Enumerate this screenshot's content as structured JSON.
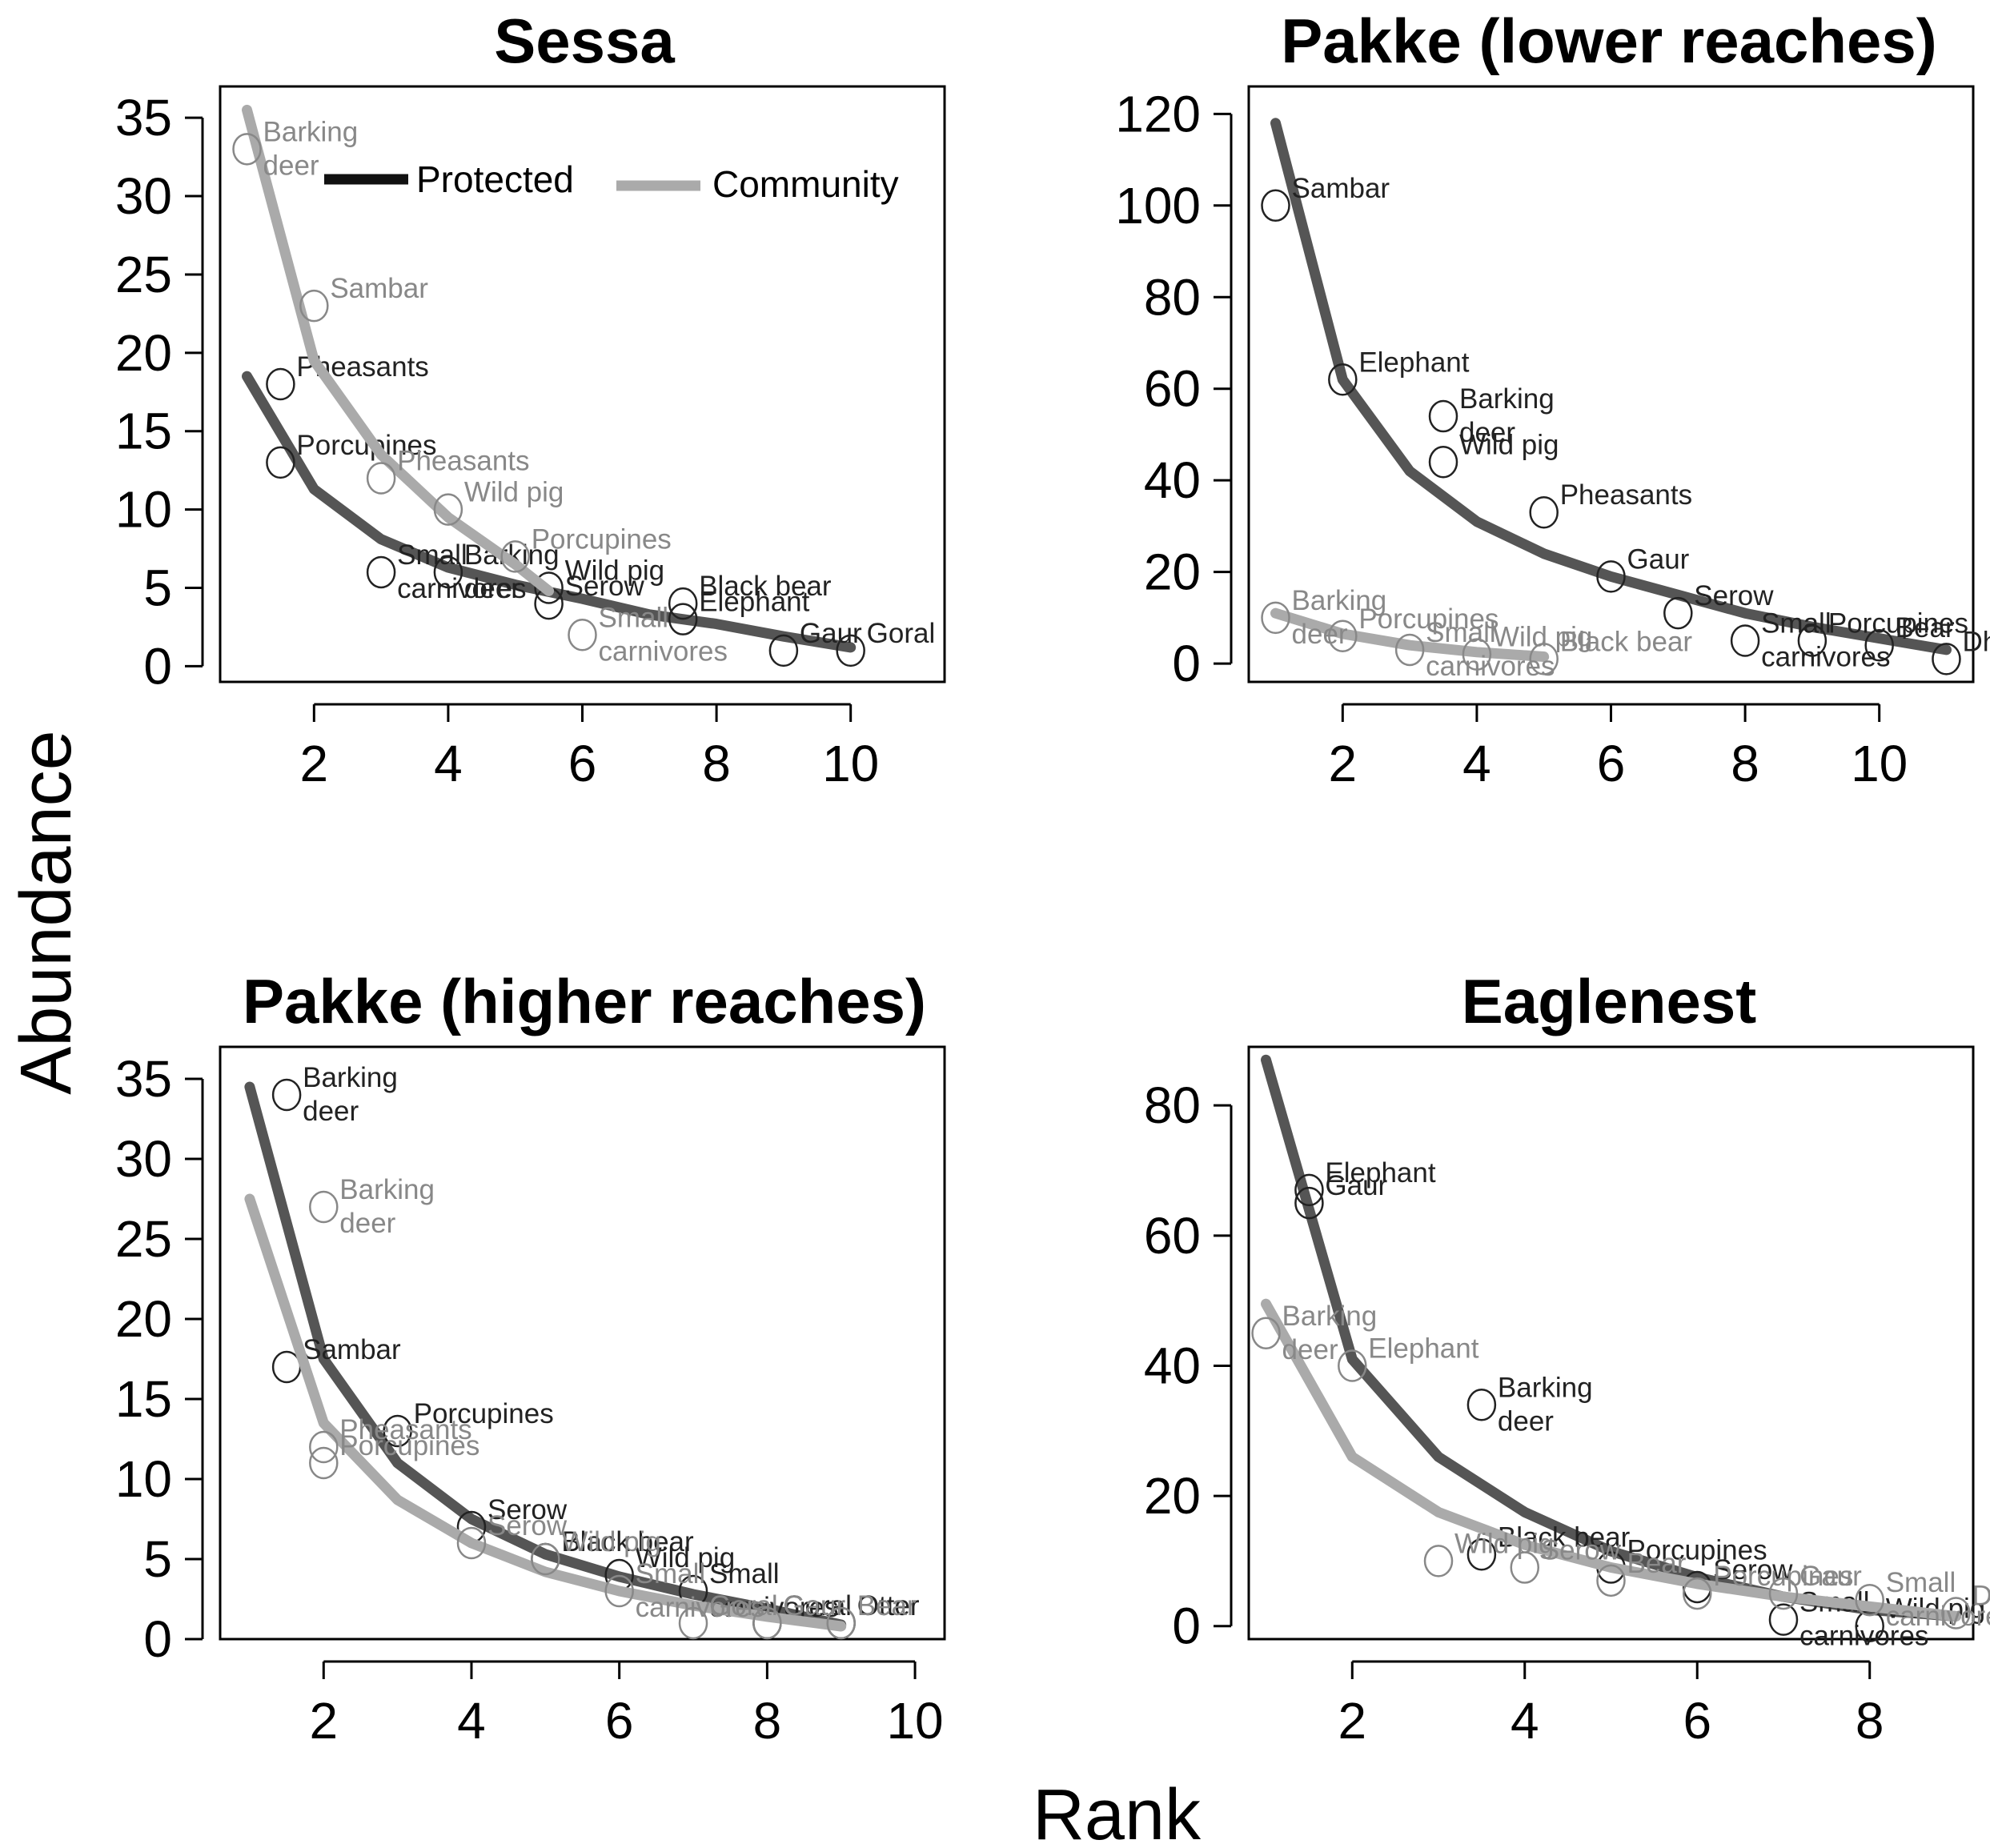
{
  "figure": {
    "xlabel": "Rank",
    "ylabel": "Abundance",
    "colors": {
      "protected_line": "#555555",
      "community_line": "#aaaaaa",
      "protected_text": "#222222",
      "community_text": "#888888",
      "legend_protected": "#111111",
      "legend_community": "#aaaaaa"
    },
    "legend": {
      "protected": "Protected",
      "community": "Community",
      "placement": "top-right of Sessa panel"
    }
  },
  "chart_data": [
    {
      "type": "line",
      "title": "Sessa",
      "xlabel": "Rank",
      "ylabel": "Abundance",
      "xlim": [
        0.6,
        11.4
      ],
      "ylim": [
        -1,
        37
      ],
      "xticks": [
        2,
        4,
        6,
        8,
        10
      ],
      "yticks": [
        0,
        5,
        10,
        15,
        20,
        25,
        30,
        35
      ],
      "series": [
        {
          "name": "Protected",
          "curve": [
            [
              1,
              18.5
            ],
            [
              2,
              11.3
            ],
            [
              3,
              8.1
            ],
            [
              4,
              6.3
            ],
            [
              5,
              5.2
            ],
            [
              6,
              4.3
            ],
            [
              7,
              3.3
            ],
            [
              8,
              2.7
            ],
            [
              9,
              1.9
            ],
            [
              10,
              1.2
            ]
          ],
          "points": [
            {
              "x": 1.5,
              "y": 18,
              "label": "Pheasants"
            },
            {
              "x": 1.5,
              "y": 13,
              "label": "Porcupines"
            },
            {
              "x": 3,
              "y": 6,
              "label": "Small carnivores"
            },
            {
              "x": 4,
              "y": 6,
              "label": "Barking deer"
            },
            {
              "x": 5.5,
              "y": 5,
              "label": "Wild pig"
            },
            {
              "x": 5.5,
              "y": 4,
              "label": "Serow"
            },
            {
              "x": 7.5,
              "y": 4,
              "label": "Black bear"
            },
            {
              "x": 7.5,
              "y": 3,
              "label": "Elephant"
            },
            {
              "x": 9,
              "y": 1,
              "label": "Gaur"
            },
            {
              "x": 10,
              "y": 1,
              "label": "Goral"
            }
          ]
        },
        {
          "name": "Community",
          "curve": [
            [
              1,
              35.5
            ],
            [
              2,
              19.5
            ],
            [
              3,
              13.5
            ],
            [
              4,
              9.5
            ],
            [
              5,
              6.5
            ],
            [
              5.5,
              4.8
            ]
          ],
          "points": [
            {
              "x": 1,
              "y": 33,
              "label": "Barking deer"
            },
            {
              "x": 2,
              "y": 23,
              "label": "Sambar"
            },
            {
              "x": 3,
              "y": 12,
              "label": "Pheasants"
            },
            {
              "x": 4,
              "y": 10,
              "label": "Wild pig"
            },
            {
              "x": 5,
              "y": 7,
              "label": "Porcupines"
            },
            {
              "x": 6,
              "y": 2,
              "label": "Small carnivores"
            }
          ]
        }
      ]
    },
    {
      "type": "line",
      "title": "Pakke (lower reaches)",
      "xlabel": "Rank",
      "ylabel": "Abundance",
      "xlim": [
        0.6,
        11.4
      ],
      "ylim": [
        -4,
        126
      ],
      "xticks": [
        2,
        4,
        6,
        8,
        10
      ],
      "yticks": [
        0,
        20,
        40,
        60,
        80,
        100,
        120
      ],
      "series": [
        {
          "name": "Protected",
          "curve": [
            [
              1,
              118
            ],
            [
              2,
              62
            ],
            [
              3,
              42
            ],
            [
              4,
              31
            ],
            [
              5,
              24
            ],
            [
              6,
              19
            ],
            [
              7,
              15
            ],
            [
              8,
              11
            ],
            [
              9,
              8
            ],
            [
              10,
              5.5
            ],
            [
              11,
              3
            ]
          ],
          "points": [
            {
              "x": 1,
              "y": 100,
              "label": "Sambar"
            },
            {
              "x": 2,
              "y": 62,
              "label": "Elephant"
            },
            {
              "x": 3.5,
              "y": 54,
              "label": "Barking deer"
            },
            {
              "x": 3.5,
              "y": 44,
              "label": "Wild pig"
            },
            {
              "x": 5,
              "y": 33,
              "label": "Pheasants"
            },
            {
              "x": 6,
              "y": 19,
              "label": "Gaur"
            },
            {
              "x": 7,
              "y": 11,
              "label": "Serow"
            },
            {
              "x": 8,
              "y": 5,
              "label": "Small carnivores"
            },
            {
              "x": 9,
              "y": 5,
              "label": "Porcupines"
            },
            {
              "x": 10,
              "y": 4,
              "label": "Bear"
            },
            {
              "x": 11,
              "y": 1,
              "label": "Dhole"
            }
          ]
        },
        {
          "name": "Community",
          "curve": [
            [
              1,
              11
            ],
            [
              2,
              6.5
            ],
            [
              3,
              4
            ],
            [
              4,
              2.5
            ],
            [
              5,
              1.5
            ]
          ],
          "points": [
            {
              "x": 1,
              "y": 10,
              "label": "Barking deer"
            },
            {
              "x": 2,
              "y": 6,
              "label": "Porcupines"
            },
            {
              "x": 3,
              "y": 3,
              "label": "Small carnivores"
            },
            {
              "x": 4,
              "y": 2,
              "label": "Wild pig"
            },
            {
              "x": 5,
              "y": 1,
              "label": "Black bear"
            }
          ]
        }
      ]
    },
    {
      "type": "line",
      "title": "Pakke (higher reaches)",
      "xlabel": "Rank",
      "ylabel": "Abundance",
      "xlim": [
        0.6,
        10.4
      ],
      "ylim": [
        0,
        37
      ],
      "xticks": [
        2,
        4,
        6,
        8,
        10
      ],
      "yticks": [
        0,
        5,
        10,
        15,
        20,
        25,
        30,
        35
      ],
      "series": [
        {
          "name": "Protected",
          "curve": [
            [
              1,
              34.5
            ],
            [
              2,
              17.5
            ],
            [
              3,
              11
            ],
            [
              4,
              7.5
            ],
            [
              5,
              5.3
            ],
            [
              6,
              3.9
            ],
            [
              7,
              2.8
            ],
            [
              8,
              1.9
            ],
            [
              9,
              0.9
            ]
          ],
          "points": [
            {
              "x": 1.5,
              "y": 34,
              "label": "Barking deer"
            },
            {
              "x": 1.5,
              "y": 17,
              "label": "Sambar"
            },
            {
              "x": 3,
              "y": 13,
              "label": "Porcupines"
            },
            {
              "x": 4,
              "y": 7,
              "label": "Serow"
            },
            {
              "x": 5,
              "y": 5,
              "label": "Black bear"
            },
            {
              "x": 6,
              "y": 4,
              "label": "Wild pig"
            },
            {
              "x": 7,
              "y": 3,
              "label": "Small carnivores"
            },
            {
              "x": 8,
              "y": 1,
              "label": "Goral"
            },
            {
              "x": 9,
              "y": 1,
              "label": "Otter"
            }
          ]
        },
        {
          "name": "Community",
          "curve": [
            [
              1,
              27.5
            ],
            [
              2,
              13.5
            ],
            [
              3,
              8.7
            ],
            [
              4,
              6
            ],
            [
              5,
              4.2
            ],
            [
              6,
              3
            ],
            [
              7,
              2.1
            ],
            [
              8,
              1.4
            ],
            [
              9,
              0.8
            ]
          ],
          "points": [
            {
              "x": 2,
              "y": 27,
              "label": "Barking deer"
            },
            {
              "x": 2,
              "y": 12,
              "label": "Pheasants"
            },
            {
              "x": 2,
              "y": 11,
              "label": "Porcupines"
            },
            {
              "x": 4,
              "y": 6,
              "label": "Serow"
            },
            {
              "x": 5,
              "y": 5,
              "label": "Wild pig"
            },
            {
              "x": 6,
              "y": 3,
              "label": "Small carnivores"
            },
            {
              "x": 7,
              "y": 1,
              "label": "Goral"
            },
            {
              "x": 8,
              "y": 1,
              "label": "Gaur"
            },
            {
              "x": 9,
              "y": 1,
              "label": "Bear"
            }
          ]
        }
      ]
    },
    {
      "type": "line",
      "title": "Eaglenest",
      "xlabel": "Rank",
      "ylabel": "Abundance",
      "xlim": [
        0.8,
        9.2
      ],
      "ylim": [
        -2,
        89
      ],
      "xticks": [
        2,
        4,
        6,
        8
      ],
      "yticks": [
        0,
        20,
        40,
        60,
        80
      ],
      "series": [
        {
          "name": "Protected",
          "curve": [
            [
              1,
              87
            ],
            [
              2,
              41
            ],
            [
              3,
              26
            ],
            [
              4,
              17.5
            ],
            [
              5,
              11.5
            ],
            [
              6,
              7.5
            ],
            [
              7,
              4.5
            ],
            [
              8,
              2.5
            ],
            [
              9,
              1.5
            ]
          ],
          "points": [
            {
              "x": 1.5,
              "y": 67,
              "label": "Elephant"
            },
            {
              "x": 1.5,
              "y": 65,
              "label": "Gaur"
            },
            {
              "x": 3.5,
              "y": 34,
              "label": "Barking deer"
            },
            {
              "x": 3.5,
              "y": 11,
              "label": "Black bear"
            },
            {
              "x": 5,
              "y": 9,
              "label": "Porcupines"
            },
            {
              "x": 6,
              "y": 6,
              "label": "Serow"
            },
            {
              "x": 7,
              "y": 1,
              "label": "Small carnivores"
            },
            {
              "x": 8,
              "y": 0,
              "label": "Wild pig"
            }
          ]
        },
        {
          "name": "Community",
          "curve": [
            [
              1,
              49.5
            ],
            [
              2,
              26
            ],
            [
              3,
              17.5
            ],
            [
              4,
              12.5
            ],
            [
              5,
              9
            ],
            [
              6,
              6.5
            ],
            [
              7,
              4.5
            ],
            [
              8,
              3
            ],
            [
              9,
              1.5
            ]
          ],
          "points": [
            {
              "x": 1,
              "y": 45,
              "label": "Barking deer"
            },
            {
              "x": 2,
              "y": 40,
              "label": "Elephant"
            },
            {
              "x": 3,
              "y": 10,
              "label": "Wild pig"
            },
            {
              "x": 4,
              "y": 9,
              "label": "Serow"
            },
            {
              "x": 5,
              "y": 7,
              "label": "Bear"
            },
            {
              "x": 6,
              "y": 5,
              "label": "Porcupines"
            },
            {
              "x": 7,
              "y": 5,
              "label": "Gaur"
            },
            {
              "x": 8,
              "y": 4,
              "label": "Small carnivores"
            },
            {
              "x": 9,
              "y": 2,
              "label": "Dhole"
            }
          ]
        }
      ]
    }
  ]
}
